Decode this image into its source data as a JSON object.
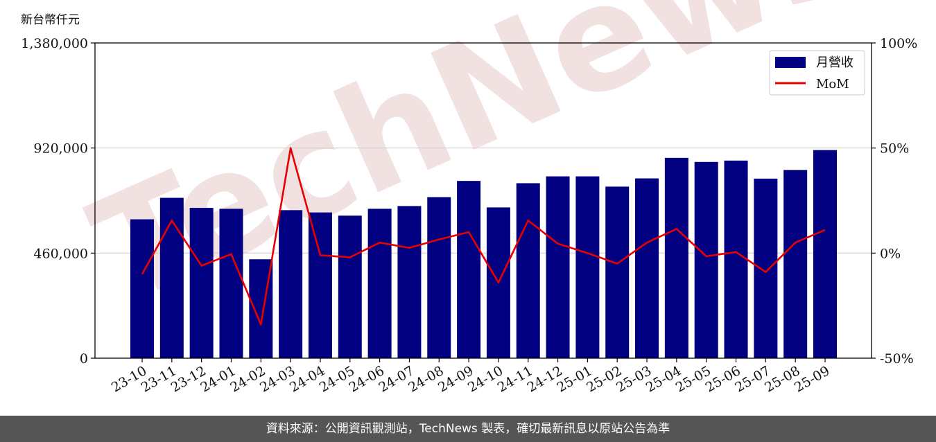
{
  "header": {
    "unit_label": "新台幣仟元"
  },
  "footer": {
    "text": "資料來源：公開資訊觀測站，TechNews 製表，確切最新訊息以原站公告為準"
  },
  "watermark": {
    "text": "TechNews",
    "color": "#e9c9c9"
  },
  "chart_data": {
    "type": "bar+line",
    "categories": [
      "23-10",
      "23-11",
      "23-12",
      "24-01",
      "24-02",
      "24-03",
      "24-04",
      "24-05",
      "24-06",
      "24-07",
      "24-08",
      "24-09",
      "24-10",
      "24-11",
      "24-12",
      "25-01",
      "25-02",
      "25-03",
      "25-04",
      "25-05",
      "25-06",
      "25-07",
      "25-08",
      "25-09"
    ],
    "series": [
      {
        "name": "月營收",
        "type": "bar",
        "axis": "left",
        "color": "#000080",
        "values": [
          608000,
          702000,
          658000,
          654000,
          433000,
          648000,
          638000,
          624000,
          654000,
          666000,
          705000,
          776000,
          660000,
          766000,
          796000,
          796000,
          751000,
          787000,
          877000,
          859000,
          865000,
          786000,
          824000,
          911000
        ]
      },
      {
        "name": "MoM",
        "type": "line",
        "axis": "right",
        "color": "#e80000",
        "values": [
          -10,
          15.5,
          -6,
          -0.5,
          -34,
          50,
          -1,
          -2,
          5,
          2.5,
          6.5,
          10,
          -14,
          15.5,
          4.5,
          0,
          -5,
          5,
          11.5,
          -1.5,
          0.5,
          -9,
          5,
          11
        ]
      }
    ],
    "y_left": {
      "ylim": [
        0,
        1380000
      ],
      "ticks": [
        0,
        460000,
        920000,
        1380000
      ],
      "tick_labels": [
        "0",
        "460,000",
        "920,000",
        "1,380,000"
      ]
    },
    "y_right": {
      "ylim": [
        -50,
        100
      ],
      "ticks": [
        -50,
        0,
        50,
        100
      ],
      "tick_labels": [
        "-50%",
        "0%",
        "50%",
        "100%"
      ]
    },
    "grid": "horizontal",
    "legend": {
      "position": "top-right",
      "entries": [
        "月營收",
        "MoM"
      ]
    }
  }
}
